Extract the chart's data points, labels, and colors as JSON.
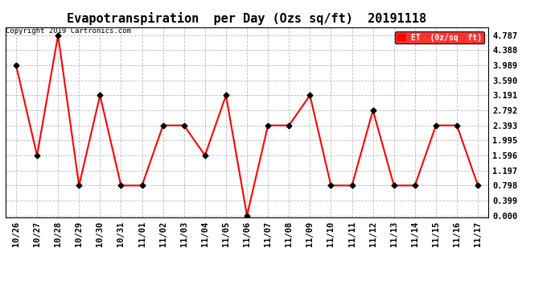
{
  "title": "Evapotranspiration  per Day (Ozs sq/ft)  20191118",
  "copyright": "Copyright 2019 Cartronics.com",
  "legend_label": "ET  (0z/sq  ft)",
  "x_labels": [
    "10/26",
    "10/27",
    "10/28",
    "10/29",
    "10/30",
    "10/31",
    "11/01",
    "11/02",
    "11/03",
    "11/04",
    "11/05",
    "11/06",
    "11/07",
    "11/08",
    "11/09",
    "11/10",
    "11/11",
    "11/12",
    "11/13",
    "11/14",
    "11/15",
    "11/16",
    "11/17"
  ],
  "y_values": [
    3.989,
    1.596,
    4.787,
    0.798,
    3.191,
    0.798,
    0.798,
    2.393,
    2.393,
    1.596,
    3.191,
    0.0,
    2.393,
    2.393,
    3.191,
    0.798,
    0.798,
    2.792,
    0.798,
    0.798,
    2.393,
    2.393,
    0.798
  ],
  "y_ticks": [
    0.0,
    0.399,
    0.798,
    1.197,
    1.596,
    1.995,
    2.393,
    2.792,
    3.191,
    3.59,
    3.989,
    4.388,
    4.787
  ],
  "ylim": [
    -0.05,
    5.0
  ],
  "line_color": "red",
  "marker_color": "black",
  "grid_color": "#aaaaaa",
  "bg_color": "#ffffff",
  "legend_bg": "red",
  "legend_text_color": "white",
  "title_fontsize": 11,
  "copyright_fontsize": 6.5,
  "tick_fontsize": 7.5
}
